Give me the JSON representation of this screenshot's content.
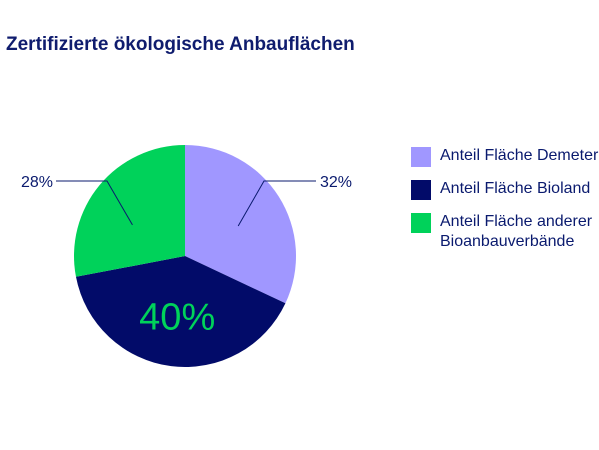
{
  "title": "Zertifizierte ökologische Anbauflächen",
  "chart_data": {
    "type": "pie",
    "slices": [
      {
        "label": "Anteil Fläche Demeter",
        "value": 32,
        "display": "32%",
        "color": "#a097ff"
      },
      {
        "label": "Anteil Fläche Bioland",
        "value": 40,
        "display": "40%",
        "color": "#020b69"
      },
      {
        "label": "Anteil Fläche anderer\nBioanbauverbände",
        "value": 28,
        "display": "28%",
        "color": "#00d25a"
      }
    ],
    "start_angle_deg": 0,
    "direction": "clockwise",
    "legend_position": "right",
    "label_text_color": "#0a1a6e",
    "inner_label_color": "#00d25a",
    "leader_color": "#0a1a6e"
  }
}
